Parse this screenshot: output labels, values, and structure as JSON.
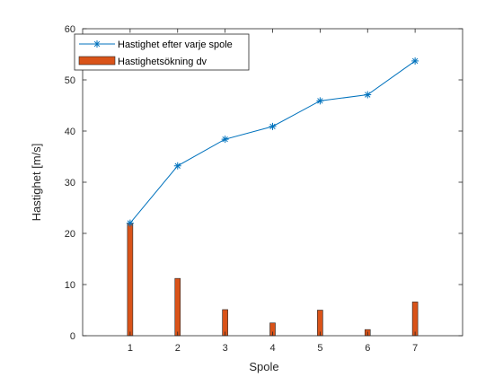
{
  "chart_data": {
    "type": "bar+line",
    "title": "",
    "xlabel": "Spole",
    "ylabel": "Hastighet [m/s]",
    "xlim": [
      0,
      8
    ],
    "ylim": [
      0,
      60
    ],
    "xticks": [
      1,
      2,
      3,
      4,
      5,
      6,
      7
    ],
    "yticks": [
      0,
      10,
      20,
      30,
      40,
      50,
      60
    ],
    "grid": false,
    "legend_position": "top-left",
    "x": [
      1,
      2,
      3,
      4,
      5,
      6,
      7
    ],
    "series": [
      {
        "name": "Hastighet efter varje spole",
        "type": "line",
        "marker": "asterisk",
        "color": "#0072BD",
        "values": [
          22.0,
          33.2,
          38.4,
          40.9,
          45.9,
          47.1,
          53.7
        ]
      },
      {
        "name": "Hastighetsökning dv",
        "type": "bar",
        "color": "#D95319",
        "values": [
          22.0,
          11.2,
          5.1,
          2.5,
          5.0,
          1.2,
          6.6
        ]
      }
    ]
  }
}
